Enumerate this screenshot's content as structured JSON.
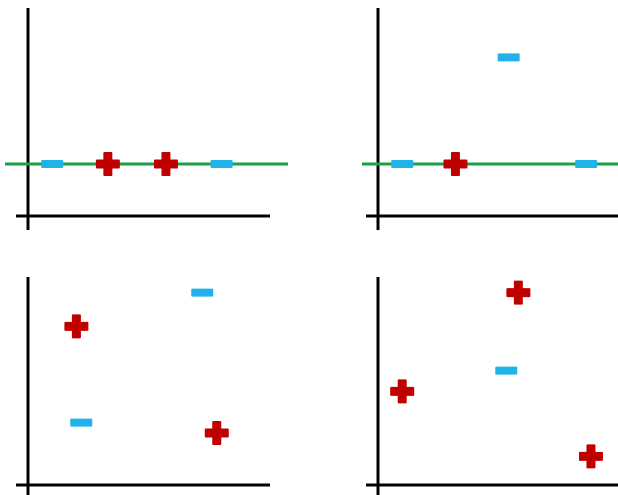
{
  "colors": {
    "axis": "#000000",
    "plus": "#c00000",
    "minus": "#1fb3ea",
    "line": "#1aa04a"
  },
  "marker_names": {
    "plus": "plus-marker",
    "minus": "minus-marker"
  },
  "chart_data": [
    {
      "type": "scatter",
      "title": "",
      "xlabel": "",
      "ylabel": "",
      "xlim": [
        0,
        10
      ],
      "ylim": [
        0,
        8
      ],
      "separator_line": {
        "y": 2
      },
      "points": [
        {
          "x": 1,
          "y": 2,
          "label": "minus"
        },
        {
          "x": 3.3,
          "y": 2,
          "label": "plus"
        },
        {
          "x": 5.7,
          "y": 2,
          "label": "plus"
        },
        {
          "x": 8,
          "y": 2,
          "label": "minus"
        }
      ]
    },
    {
      "type": "scatter",
      "title": "",
      "xlabel": "",
      "ylabel": "",
      "xlim": [
        0,
        10
      ],
      "ylim": [
        0,
        8
      ],
      "separator_line": {
        "y": 2
      },
      "points": [
        {
          "x": 1,
          "y": 2,
          "label": "minus"
        },
        {
          "x": 3.2,
          "y": 2,
          "label": "plus"
        },
        {
          "x": 5.4,
          "y": 6.1,
          "label": "minus"
        },
        {
          "x": 8.6,
          "y": 2,
          "label": "minus"
        }
      ]
    },
    {
      "type": "scatter",
      "title": "",
      "xlabel": "",
      "ylabel": "",
      "xlim": [
        0,
        10
      ],
      "ylim": [
        0,
        8
      ],
      "points": [
        {
          "x": 2,
          "y": 6.1,
          "label": "plus"
        },
        {
          "x": 2.2,
          "y": 2.4,
          "label": "minus"
        },
        {
          "x": 7.2,
          "y": 7.4,
          "label": "minus"
        },
        {
          "x": 7.8,
          "y": 2,
          "label": "plus"
        }
      ]
    },
    {
      "type": "scatter",
      "title": "",
      "xlabel": "",
      "ylabel": "",
      "xlim": [
        0,
        10
      ],
      "ylim": [
        0,
        8
      ],
      "points": [
        {
          "x": 1,
          "y": 3.6,
          "label": "plus"
        },
        {
          "x": 5.3,
          "y": 4.4,
          "label": "minus"
        },
        {
          "x": 5.8,
          "y": 7.4,
          "label": "plus"
        },
        {
          "x": 8.8,
          "y": 1.1,
          "label": "plus"
        }
      ]
    }
  ]
}
